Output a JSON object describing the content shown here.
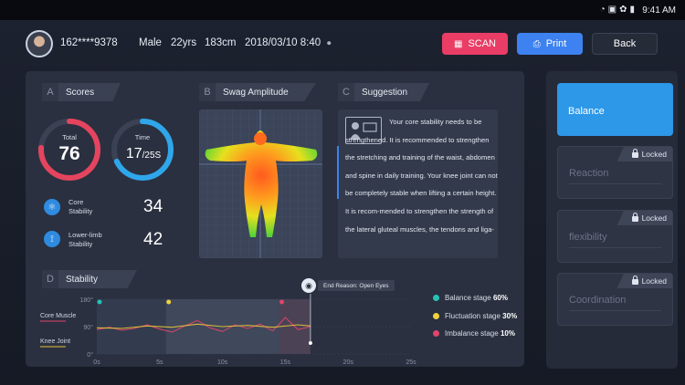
{
  "status_bar": {
    "time": "9:41 AM",
    "icons": [
      "wifi-icon",
      "sim-icon",
      "settings-icon",
      "battery-icon"
    ]
  },
  "user": {
    "id": "162****9378",
    "gender": "Male",
    "age": "22yrs",
    "height": "183cm",
    "datetime": "2018/03/10 8:40"
  },
  "toolbar": {
    "scan_label": "SCAN",
    "print_label": "Print",
    "back_label": "Back"
  },
  "scores": {
    "letter": "A",
    "title": "Scores",
    "total_label": "Total",
    "total_value": "76",
    "total_fraction": 0.76,
    "time_label": "Time",
    "time_value": "17",
    "time_unit": "/25S",
    "time_fraction": 0.68,
    "core_label_1": "Core",
    "core_label_2": "Stability",
    "core_value": "34",
    "limb_label_1": "Lower-limb",
    "limb_label_2": "Stability",
    "limb_value": "42"
  },
  "swag": {
    "letter": "B",
    "title": "Swag Amplitude"
  },
  "suggestion": {
    "letter": "C",
    "title": "Suggestion",
    "text": "Your core stability needs to be strengthened. It is recommended to strengthen the stretching and training of the waist, abdomen and spine in daily training. Your knee joint can not be completely stable  when lifting a certain height. It is recom-mended to strengthen the strength of the lateral gluteal muscles, the tendons and liga-"
  },
  "stability": {
    "letter": "D",
    "title": "Stability",
    "end_reason": "End Reason: Open Eyes"
  },
  "chart_data": {
    "type": "line",
    "title": "Stability",
    "x_ticks": [
      "0s",
      "5s",
      "10s",
      "15s",
      "20s",
      "25s"
    ],
    "y_ticks": [
      "180°",
      "90°",
      "0°"
    ],
    "xlim": [
      0,
      25
    ],
    "ylim": [
      0,
      180
    ],
    "series": [
      {
        "name": "Core Muscle",
        "color": "#e0456a",
        "x": [
          0,
          1,
          2,
          3,
          4,
          5,
          6,
          7,
          8,
          9,
          10,
          11,
          12,
          13,
          14,
          15,
          16,
          17
        ],
        "y": [
          80,
          88,
          78,
          84,
          96,
          82,
          72,
          92,
          110,
          86,
          74,
          96,
          84,
          98,
          76,
          120,
          80,
          90
        ]
      },
      {
        "name": "Knee Joint",
        "color": "#e8c33a",
        "x": [
          0,
          2,
          4,
          6,
          8,
          10,
          12,
          14,
          16,
          17
        ],
        "y": [
          86,
          84,
          92,
          88,
          98,
          90,
          94,
          88,
          96,
          92
        ]
      }
    ],
    "stages": [
      {
        "name": "Balance stage",
        "percent": "60%",
        "color": "#27c1b8"
      },
      {
        "name": "Fluctuation stage",
        "percent": "30%",
        "color": "#f1d23a"
      },
      {
        "name": "Imbalance stage",
        "percent": "10%",
        "color": "#e0456a"
      }
    ]
  },
  "side_menu": {
    "items": [
      {
        "label": "Balance",
        "locked": ""
      },
      {
        "label": "Reaction",
        "locked": "Locked"
      },
      {
        "label": "flexibility",
        "locked": "Locked"
      },
      {
        "label": "Coordination",
        "locked": "Locked"
      }
    ]
  }
}
